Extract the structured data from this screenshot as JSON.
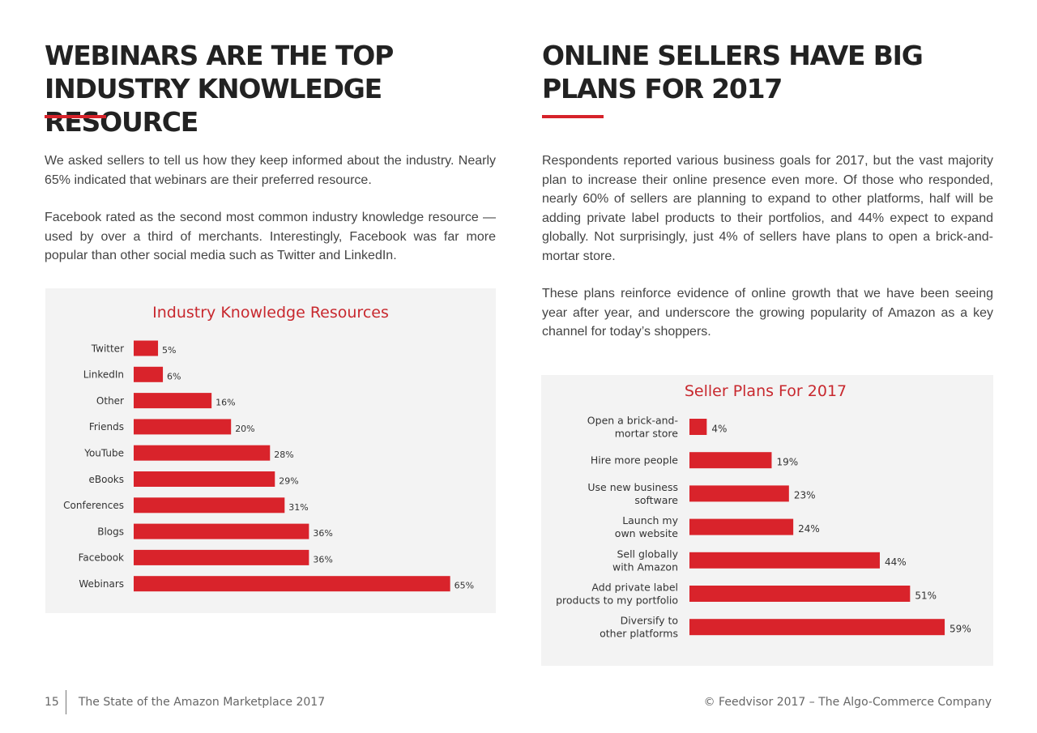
{
  "left": {
    "title": "WEBINARS ARE THE TOP INDUSTRY KNOWLEDGE RESOURCE",
    "paragraphs": [
      "We asked sellers to tell us how they keep informed about the industry. Nearly 65% indicated that webinars are their preferred resource.",
      "Facebook rated as the second most common industry knowledge resource — used by over a third of merchants. Interestingly, Facebook was far more popular than other social media such as Twitter and LinkedIn."
    ]
  },
  "right": {
    "title": "ONLINE SELLERS HAVE BIG PLANS FOR 2017",
    "paragraphs": [
      "Respondents reported various business goals for 2017, but the vast majority plan to increase their online presence even more. Of those who responded, nearly 60% of sellers are planning to expand to other platforms, half will be adding private label products to their portfolios, and 44% expect to expand globally. Not surprisingly, just 4% of sellers have plans to open a brick-and-mortar store.",
      "These plans reinforce evidence of online growth that we have been seeing year after year, and underscore the growing popularity of Amazon as a key channel for today’s shoppers."
    ]
  },
  "colors": {
    "accent": "#d6222a",
    "bar": "#d9232b",
    "title": "#c8282e",
    "chart_bg": "#f3f3f3"
  },
  "chart_data": [
    {
      "type": "bar",
      "orientation": "horizontal",
      "title": "Industry Knowledge Resources",
      "categories": [
        "Twitter",
        "LinkedIn",
        "Other",
        "Friends",
        "YouTube",
        "eBooks",
        "Conferences",
        "Blogs",
        "Facebook",
        "Webinars"
      ],
      "values": [
        5,
        6,
        16,
        20,
        28,
        29,
        31,
        36,
        36,
        65
      ],
      "value_labels": [
        "5%",
        "6%",
        "16%",
        "20%",
        "28%",
        "29%",
        "31%",
        "36%",
        "36%",
        "65%"
      ],
      "unit": "%",
      "xlim": [
        0,
        100
      ],
      "grid": false,
      "legend": "none"
    },
    {
      "type": "bar",
      "orientation": "horizontal",
      "title": "Seller Plans For 2017",
      "categories": [
        [
          "Open a brick-and-",
          "mortar store"
        ],
        [
          "Hire more people"
        ],
        [
          "Use new business",
          "software"
        ],
        [
          "Launch my",
          "own website"
        ],
        [
          "Sell globally",
          "with Amazon"
        ],
        [
          "Add private label",
          "products to my portfolio"
        ],
        [
          "Diversify to",
          "other platforms"
        ]
      ],
      "values": [
        4,
        19,
        23,
        24,
        44,
        51,
        59
      ],
      "value_labels": [
        "4%",
        "19%",
        "23%",
        "24%",
        "44%",
        "51%",
        "59%"
      ],
      "unit": "%",
      "xlim": [
        0,
        100
      ],
      "grid": false,
      "legend": "none"
    }
  ],
  "footer": {
    "page_number": "15",
    "publication": "The State of the Amazon Marketplace 2017",
    "copyright": "© Feedvisor 2017 – The Algo-Commerce Company"
  }
}
